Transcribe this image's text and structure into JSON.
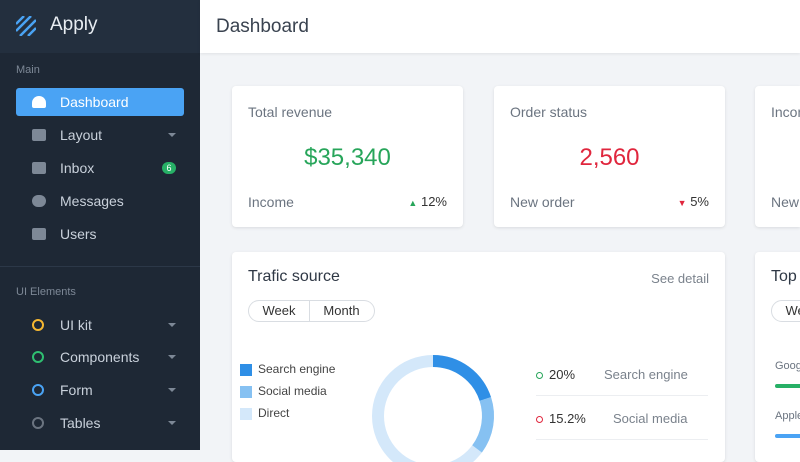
{
  "brand": "Apply",
  "sidebar": {
    "sections": [
      {
        "label": "Main",
        "items": [
          {
            "label": "Dashboard"
          },
          {
            "label": "Layout"
          },
          {
            "label": "Inbox",
            "badge": "6"
          },
          {
            "label": "Messages"
          },
          {
            "label": "Users"
          }
        ]
      },
      {
        "label": "UI Elements",
        "items": [
          {
            "label": "UI kit"
          },
          {
            "label": "Components"
          },
          {
            "label": "Form"
          },
          {
            "label": "Tables"
          }
        ]
      }
    ]
  },
  "header": {
    "title": "Dashboard"
  },
  "cards": [
    {
      "title": "Total revenue",
      "value": "$35,340",
      "label": "Income",
      "change": "12%"
    },
    {
      "title": "Order status",
      "value": "2,560",
      "label": "New order",
      "change": "5%"
    },
    {
      "title": "Income",
      "label": "New"
    }
  ],
  "traffic": {
    "title": "Trafic source",
    "link": "See detail",
    "tabs": [
      "Week",
      "Month"
    ],
    "legend": [
      "Search engine",
      "Social media",
      "Direct"
    ],
    "donut": {
      "values": [
        20,
        15.2
      ],
      "value_labels": [
        "20%",
        "15.2%"
      ],
      "names": [
        "Search engine",
        "Social media"
      ]
    }
  },
  "top": {
    "title": "Top",
    "tab": "Week",
    "items": [
      "Google",
      "Apple"
    ]
  }
}
